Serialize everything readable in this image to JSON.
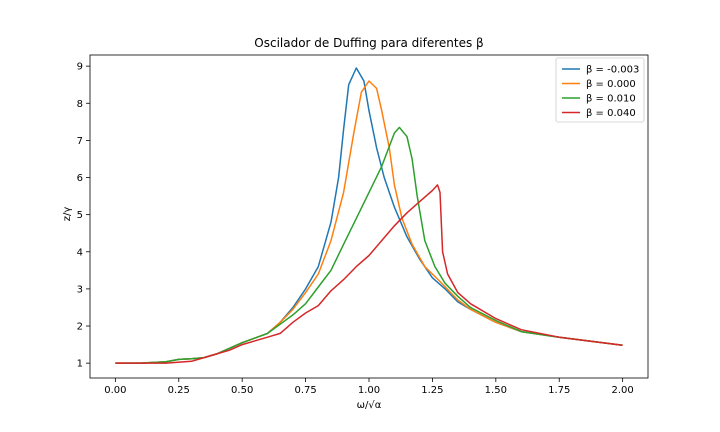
{
  "chart_data": {
    "type": "line",
    "title": "Oscilador de Duffing para diferentes β",
    "xlabel": "ω/√α",
    "ylabel": "z/γ",
    "xlim": [
      -0.1,
      2.1
    ],
    "ylim": [
      0.6,
      9.3
    ],
    "xticks": [
      "0.00",
      "0.25",
      "0.50",
      "0.75",
      "1.00",
      "1.25",
      "1.50",
      "1.75",
      "2.00"
    ],
    "yticks": [
      "1",
      "2",
      "3",
      "4",
      "5",
      "6",
      "7",
      "8",
      "9"
    ],
    "grid": false,
    "legend": "top-right",
    "series": [
      {
        "name": "β = -0.003",
        "color": "#1f77b4",
        "points": [
          [
            0.0,
            1.0
          ],
          [
            0.1,
            1.0
          ],
          [
            0.2,
            1.04
          ],
          [
            0.25,
            1.1
          ],
          [
            0.3,
            1.12
          ],
          [
            0.35,
            1.15
          ],
          [
            0.4,
            1.25
          ],
          [
            0.5,
            1.55
          ],
          [
            0.6,
            1.8
          ],
          [
            0.65,
            2.1
          ],
          [
            0.7,
            2.5
          ],
          [
            0.75,
            3.0
          ],
          [
            0.8,
            3.6
          ],
          [
            0.85,
            4.8
          ],
          [
            0.88,
            6.0
          ],
          [
            0.9,
            7.3
          ],
          [
            0.92,
            8.5
          ],
          [
            0.95,
            8.95
          ],
          [
            0.98,
            8.6
          ],
          [
            1.0,
            7.8
          ],
          [
            1.03,
            6.8
          ],
          [
            1.06,
            6.0
          ],
          [
            1.1,
            5.2
          ],
          [
            1.15,
            4.4
          ],
          [
            1.2,
            3.8
          ],
          [
            1.25,
            3.3
          ],
          [
            1.3,
            3.0
          ],
          [
            1.35,
            2.65
          ],
          [
            1.4,
            2.45
          ],
          [
            1.5,
            2.1
          ],
          [
            1.6,
            1.85
          ],
          [
            1.75,
            1.7
          ],
          [
            2.0,
            1.48
          ]
        ]
      },
      {
        "name": "β = 0.000",
        "color": "#ff7f0e",
        "points": [
          [
            0.0,
            1.0
          ],
          [
            0.1,
            1.0
          ],
          [
            0.2,
            1.04
          ],
          [
            0.25,
            1.1
          ],
          [
            0.3,
            1.12
          ],
          [
            0.35,
            1.15
          ],
          [
            0.4,
            1.25
          ],
          [
            0.5,
            1.55
          ],
          [
            0.6,
            1.8
          ],
          [
            0.65,
            2.1
          ],
          [
            0.7,
            2.45
          ],
          [
            0.75,
            2.9
          ],
          [
            0.8,
            3.4
          ],
          [
            0.85,
            4.3
          ],
          [
            0.9,
            5.6
          ],
          [
            0.94,
            7.2
          ],
          [
            0.97,
            8.3
          ],
          [
            1.0,
            8.6
          ],
          [
            1.03,
            8.4
          ],
          [
            1.05,
            7.8
          ],
          [
            1.08,
            6.8
          ],
          [
            1.1,
            5.8
          ],
          [
            1.13,
            4.9
          ],
          [
            1.17,
            4.2
          ],
          [
            1.22,
            3.6
          ],
          [
            1.28,
            3.2
          ],
          [
            1.35,
            2.7
          ],
          [
            1.4,
            2.45
          ],
          [
            1.5,
            2.1
          ],
          [
            1.6,
            1.85
          ],
          [
            1.75,
            1.7
          ],
          [
            2.0,
            1.48
          ]
        ]
      },
      {
        "name": "β = 0.010",
        "color": "#2ca02c",
        "points": [
          [
            0.0,
            1.0
          ],
          [
            0.1,
            1.0
          ],
          [
            0.2,
            1.04
          ],
          [
            0.25,
            1.1
          ],
          [
            0.3,
            1.12
          ],
          [
            0.35,
            1.15
          ],
          [
            0.4,
            1.25
          ],
          [
            0.5,
            1.55
          ],
          [
            0.6,
            1.8
          ],
          [
            0.65,
            2.05
          ],
          [
            0.7,
            2.3
          ],
          [
            0.75,
            2.6
          ],
          [
            0.8,
            3.05
          ],
          [
            0.85,
            3.5
          ],
          [
            0.9,
            4.2
          ],
          [
            0.95,
            4.9
          ],
          [
            1.0,
            5.6
          ],
          [
            1.05,
            6.3
          ],
          [
            1.1,
            7.2
          ],
          [
            1.12,
            7.35
          ],
          [
            1.15,
            7.1
          ],
          [
            1.17,
            6.5
          ],
          [
            1.19,
            5.5
          ],
          [
            1.22,
            4.3
          ],
          [
            1.26,
            3.6
          ],
          [
            1.3,
            3.15
          ],
          [
            1.35,
            2.8
          ],
          [
            1.4,
            2.5
          ],
          [
            1.5,
            2.15
          ],
          [
            1.6,
            1.85
          ],
          [
            1.75,
            1.7
          ],
          [
            2.0,
            1.48
          ]
        ]
      },
      {
        "name": "β = 0.040",
        "color": "#d62728",
        "points": [
          [
            0.0,
            1.0
          ],
          [
            0.1,
            1.0
          ],
          [
            0.2,
            1.0
          ],
          [
            0.3,
            1.05
          ],
          [
            0.35,
            1.15
          ],
          [
            0.4,
            1.25
          ],
          [
            0.45,
            1.35
          ],
          [
            0.5,
            1.5
          ],
          [
            0.6,
            1.7
          ],
          [
            0.65,
            1.8
          ],
          [
            0.7,
            2.1
          ],
          [
            0.75,
            2.35
          ],
          [
            0.8,
            2.55
          ],
          [
            0.85,
            2.95
          ],
          [
            0.9,
            3.25
          ],
          [
            0.95,
            3.6
          ],
          [
            1.0,
            3.9
          ],
          [
            1.05,
            4.3
          ],
          [
            1.1,
            4.7
          ],
          [
            1.15,
            5.05
          ],
          [
            1.2,
            5.35
          ],
          [
            1.25,
            5.65
          ],
          [
            1.27,
            5.8
          ],
          [
            1.28,
            5.6
          ],
          [
            1.29,
            4.0
          ],
          [
            1.31,
            3.4
          ],
          [
            1.35,
            2.9
          ],
          [
            1.4,
            2.6
          ],
          [
            1.5,
            2.2
          ],
          [
            1.6,
            1.9
          ],
          [
            1.75,
            1.7
          ],
          [
            2.0,
            1.48
          ]
        ]
      }
    ]
  }
}
